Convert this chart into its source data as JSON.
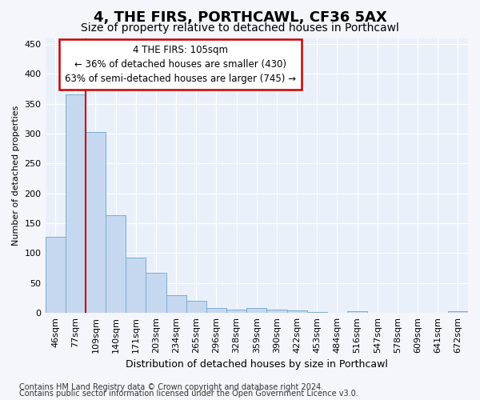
{
  "title": "4, THE FIRS, PORTHCAWL, CF36 5AX",
  "subtitle": "Size of property relative to detached houses in Porthcawl",
  "xlabel": "Distribution of detached houses by size in Porthcawl",
  "ylabel": "Number of detached properties",
  "bar_color": "#c5d8f0",
  "bar_edge_color": "#7aadd4",
  "categories": [
    "46sqm",
    "77sqm",
    "109sqm",
    "140sqm",
    "171sqm",
    "203sqm",
    "234sqm",
    "265sqm",
    "296sqm",
    "328sqm",
    "359sqm",
    "390sqm",
    "422sqm",
    "453sqm",
    "484sqm",
    "516sqm",
    "547sqm",
    "578sqm",
    "609sqm",
    "641sqm",
    "672sqm"
  ],
  "values": [
    127,
    365,
    303,
    163,
    93,
    67,
    30,
    20,
    8,
    6,
    8,
    5,
    4,
    1,
    0,
    3,
    0,
    0,
    0,
    0,
    3
  ],
  "ylim": [
    0,
    460
  ],
  "yticks": [
    0,
    50,
    100,
    150,
    200,
    250,
    300,
    350,
    400,
    450
  ],
  "property_line_x": 2,
  "annotation_title": "4 THE FIRS: 105sqm",
  "annotation_line1": "← 36% of detached houses are smaller (430)",
  "annotation_line2": "63% of semi-detached houses are larger (745) →",
  "annotation_box_color": "#ffffff",
  "annotation_border_color": "#cc0000",
  "footer_line1": "Contains HM Land Registry data © Crown copyright and database right 2024.",
  "footer_line2": "Contains public sector information licensed under the Open Government Licence v3.0.",
  "background_color": "#f4f6fb",
  "plot_bg_color": "#eaf0fa",
  "grid_color": "#ffffff",
  "title_fontsize": 13,
  "subtitle_fontsize": 10,
  "xlabel_fontsize": 9,
  "ylabel_fontsize": 8,
  "tick_fontsize": 8,
  "annotation_fontsize": 8.5,
  "footer_fontsize": 7
}
